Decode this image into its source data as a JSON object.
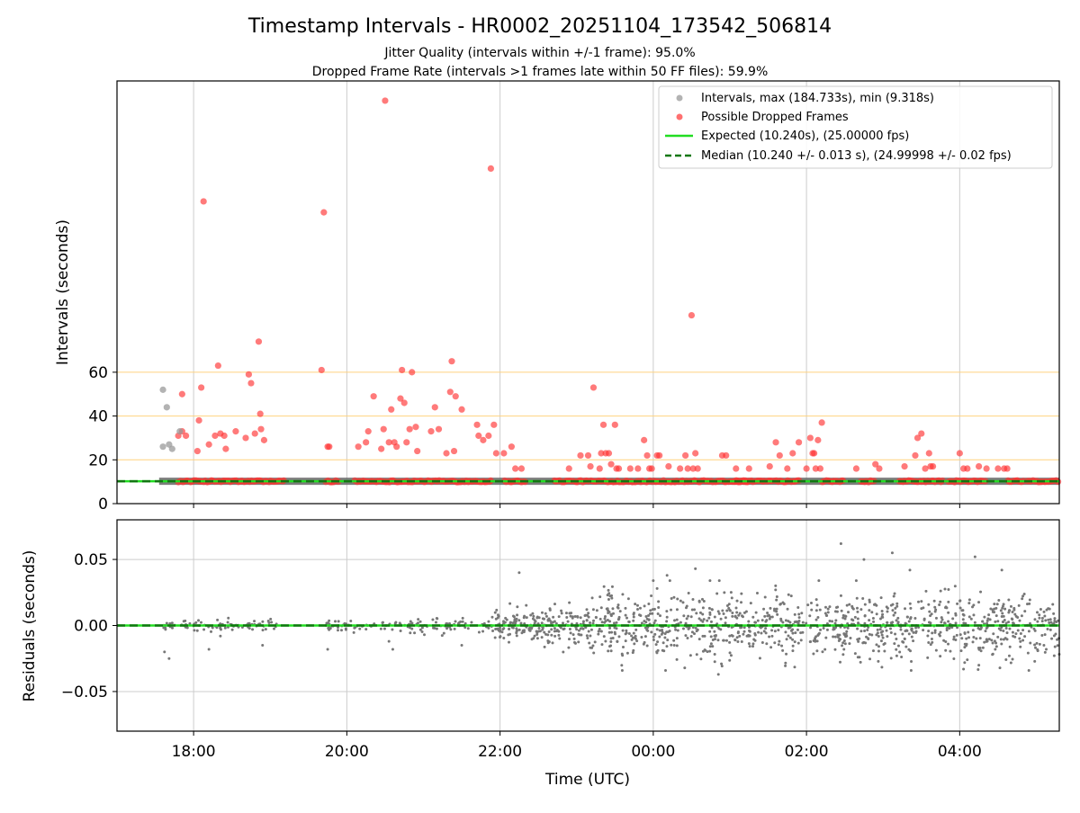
{
  "chart_data": [
    {
      "type": "scatter",
      "title": "Timestamp Intervals - HR0002_20251104_173542_506814",
      "subtitle_lines": [
        "Jitter Quality (intervals within +/-1 frame): 95.0%",
        "Dropped Frame Rate (intervals >1 frames late within 50 FF files): 59.9%"
      ],
      "xlabel": "",
      "ylabel": "Intervals (seconds)",
      "ylim": [
        0,
        193
      ],
      "yticks": [
        0,
        20,
        40,
        60
      ],
      "xlim": [
        17.0,
        29.3
      ],
      "grid": true,
      "threshold_lines": [
        20,
        40,
        60
      ],
      "legend": {
        "position": "top-right",
        "entries": [
          {
            "label": "Intervals, max (184.733s), min (9.318s)",
            "marker": "circle",
            "color": "#999999"
          },
          {
            "label": "Possible Dropped Frames",
            "marker": "circle",
            "color": "#ff3333"
          },
          {
            "label": "Expected (10.240s), (25.00000 fps)",
            "marker": "line",
            "color": "#22dd22"
          },
          {
            "label": "Median (10.240 +/- 0.013 s), (24.99998 +/- 0.02 fps)",
            "marker": "dashed",
            "color": "#117711"
          }
        ]
      },
      "expected_interval": 10.24,
      "median_interval": 10.24,
      "baseline_range": [
        17.55,
        29.3
      ],
      "normal_points": [
        [
          17.6,
          52
        ],
        [
          17.65,
          44
        ],
        [
          17.68,
          27
        ],
        [
          17.72,
          25
        ],
        [
          17.6,
          26
        ],
        [
          17.82,
          33
        ]
      ],
      "dropped_clusters": [
        [
          17.8,
          19.2
        ],
        [
          19.72,
          19.9
        ],
        [
          20.1,
          21.9
        ],
        [
          22.05,
          22.35
        ],
        [
          22.7,
          25.25
        ],
        [
          25.05,
          25.92
        ],
        [
          26.2,
          26.5
        ],
        [
          26.7,
          26.9
        ],
        [
          27.2,
          27.8
        ],
        [
          27.85,
          28.35
        ],
        [
          28.62,
          28.85
        ],
        [
          28.88,
          29.1
        ],
        [
          29.1,
          29.5
        ]
      ],
      "dropped_points": [
        [
          17.85,
          50
        ],
        [
          17.8,
          31
        ],
        [
          17.85,
          33
        ],
        [
          17.9,
          31
        ],
        [
          18.05,
          24
        ],
        [
          18.07,
          38
        ],
        [
          18.1,
          53
        ],
        [
          18.13,
          138
        ],
        [
          18.2,
          27
        ],
        [
          18.28,
          31
        ],
        [
          18.32,
          63
        ],
        [
          18.35,
          32
        ],
        [
          18.4,
          31
        ],
        [
          18.42,
          25
        ],
        [
          18.55,
          33
        ],
        [
          18.68,
          30
        ],
        [
          18.72,
          59
        ],
        [
          18.75,
          55
        ],
        [
          18.8,
          32
        ],
        [
          18.85,
          74
        ],
        [
          18.87,
          41
        ],
        [
          18.88,
          34
        ],
        [
          18.92,
          29
        ],
        [
          19.67,
          61
        ],
        [
          19.7,
          133
        ],
        [
          19.75,
          26
        ],
        [
          19.77,
          26
        ],
        [
          20.15,
          26
        ],
        [
          20.25,
          28
        ],
        [
          20.28,
          33
        ],
        [
          20.35,
          49
        ],
        [
          20.45,
          25
        ],
        [
          20.48,
          34
        ],
        [
          20.5,
          184
        ],
        [
          20.55,
          28
        ],
        [
          20.58,
          43
        ],
        [
          20.62,
          28
        ],
        [
          20.65,
          26
        ],
        [
          20.7,
          48
        ],
        [
          20.72,
          61
        ],
        [
          20.75,
          46
        ],
        [
          20.78,
          28
        ],
        [
          20.82,
          34
        ],
        [
          20.85,
          60
        ],
        [
          20.9,
          35
        ],
        [
          20.92,
          24
        ],
        [
          21.1,
          33
        ],
        [
          21.15,
          44
        ],
        [
          21.2,
          34
        ],
        [
          21.3,
          23
        ],
        [
          21.35,
          51
        ],
        [
          21.37,
          65
        ],
        [
          21.4,
          24
        ],
        [
          21.42,
          49
        ],
        [
          21.5,
          43
        ],
        [
          21.7,
          36
        ],
        [
          21.72,
          31
        ],
        [
          21.78,
          29
        ],
        [
          21.85,
          31
        ],
        [
          21.88,
          153
        ],
        [
          21.92,
          36
        ],
        [
          21.95,
          23
        ],
        [
          22.05,
          23
        ],
        [
          22.15,
          26
        ],
        [
          22.2,
          16
        ],
        [
          22.28,
          16
        ],
        [
          22.9,
          16
        ],
        [
          23.05,
          22
        ],
        [
          23.15,
          22
        ],
        [
          23.18,
          17
        ],
        [
          23.22,
          53
        ],
        [
          23.3,
          16
        ],
        [
          23.32,
          23
        ],
        [
          23.35,
          36
        ],
        [
          23.38,
          23
        ],
        [
          23.42,
          23
        ],
        [
          23.45,
          18
        ],
        [
          23.5,
          36
        ],
        [
          23.52,
          16
        ],
        [
          23.55,
          16
        ],
        [
          23.7,
          16
        ],
        [
          23.8,
          16
        ],
        [
          23.88,
          29
        ],
        [
          23.92,
          22
        ],
        [
          23.95,
          16
        ],
        [
          23.98,
          16
        ],
        [
          24.05,
          22
        ],
        [
          24.08,
          22
        ],
        [
          24.2,
          17
        ],
        [
          24.35,
          16
        ],
        [
          24.42,
          22
        ],
        [
          24.45,
          16
        ],
        [
          24.5,
          86
        ],
        [
          24.52,
          16
        ],
        [
          24.55,
          23
        ],
        [
          24.58,
          16
        ],
        [
          24.9,
          22
        ],
        [
          24.95,
          22
        ],
        [
          25.08,
          16
        ],
        [
          25.25,
          16
        ],
        [
          25.52,
          17
        ],
        [
          25.6,
          28
        ],
        [
          25.65,
          22
        ],
        [
          25.75,
          16
        ],
        [
          25.82,
          23
        ],
        [
          25.9,
          28
        ],
        [
          26.0,
          16
        ],
        [
          26.05,
          30
        ],
        [
          26.08,
          23
        ],
        [
          26.1,
          23
        ],
        [
          26.12,
          16
        ],
        [
          26.15,
          29
        ],
        [
          26.18,
          16
        ],
        [
          26.2,
          37
        ],
        [
          26.65,
          16
        ],
        [
          26.9,
          18
        ],
        [
          26.95,
          16
        ],
        [
          27.28,
          17
        ],
        [
          27.42,
          22
        ],
        [
          27.45,
          30
        ],
        [
          27.5,
          32
        ],
        [
          27.55,
          16
        ],
        [
          27.6,
          23
        ],
        [
          27.62,
          17
        ],
        [
          27.65,
          17
        ],
        [
          28.0,
          23
        ],
        [
          28.05,
          16
        ],
        [
          28.1,
          16
        ],
        [
          28.25,
          17
        ],
        [
          28.35,
          16
        ],
        [
          28.5,
          16
        ],
        [
          28.58,
          16
        ],
        [
          28.62,
          16
        ]
      ]
    },
    {
      "type": "scatter",
      "title": "",
      "xlabel": "Time (UTC)",
      "ylabel": "Residuals (seconds)",
      "ylim": [
        -0.08,
        0.08
      ],
      "yticks": [
        0.05,
        0.0,
        -0.05
      ],
      "ytick_labels": [
        "0.05",
        "0.00",
        "−0.05"
      ],
      "xlim": [
        17.0,
        29.3
      ],
      "xticks": [
        18,
        20,
        22,
        24,
        26,
        28
      ],
      "xtick_labels": [
        "18:00",
        "20:00",
        "22:00",
        "00:00",
        "02:00",
        "04:00"
      ],
      "grid": true,
      "expected_residual": 0.0,
      "median_residual": 0.0,
      "notable_points": [
        [
          17.62,
          -0.02
        ],
        [
          17.68,
          -0.025
        ],
        [
          18.2,
          -0.018
        ],
        [
          18.35,
          -0.008
        ],
        [
          18.9,
          -0.015
        ],
        [
          19.75,
          -0.018
        ],
        [
          20.6,
          -0.018
        ],
        [
          20.55,
          -0.012
        ],
        [
          21.5,
          -0.015
        ],
        [
          22.25,
          0.04
        ],
        [
          24.05,
          0.028
        ],
        [
          24.18,
          0.038
        ],
        [
          24.55,
          0.043
        ],
        [
          24.85,
          -0.037
        ],
        [
          26.45,
          0.062
        ],
        [
          26.75,
          0.05
        ],
        [
          27.12,
          0.055
        ],
        [
          27.35,
          0.042
        ],
        [
          28.2,
          0.052
        ],
        [
          28.55,
          0.042
        ],
        [
          28.05,
          -0.033
        ],
        [
          28.25,
          -0.03
        ]
      ],
      "noise_segments": [
        {
          "x0": 17.6,
          "x1": 19.1,
          "sd": 0.002
        },
        {
          "x0": 19.72,
          "x1": 20.5,
          "sd": 0.002
        },
        {
          "x0": 20.5,
          "x1": 21.9,
          "sd": 0.003
        },
        {
          "x0": 21.9,
          "x1": 22.5,
          "sd": 0.006
        },
        {
          "x0": 22.5,
          "x1": 23.2,
          "sd": 0.008
        },
        {
          "x0": 23.2,
          "x1": 26.0,
          "sd": 0.012
        },
        {
          "x0": 26.0,
          "x1": 29.3,
          "sd": 0.012
        }
      ]
    }
  ],
  "colors": {
    "normal": "#999999",
    "dropped": "#ff3333",
    "expected": "#22dd22",
    "median": "#117711",
    "residual": "#777777",
    "threshold": "#ffd27f",
    "grid": "#cccccc",
    "baseline": "#666666"
  }
}
